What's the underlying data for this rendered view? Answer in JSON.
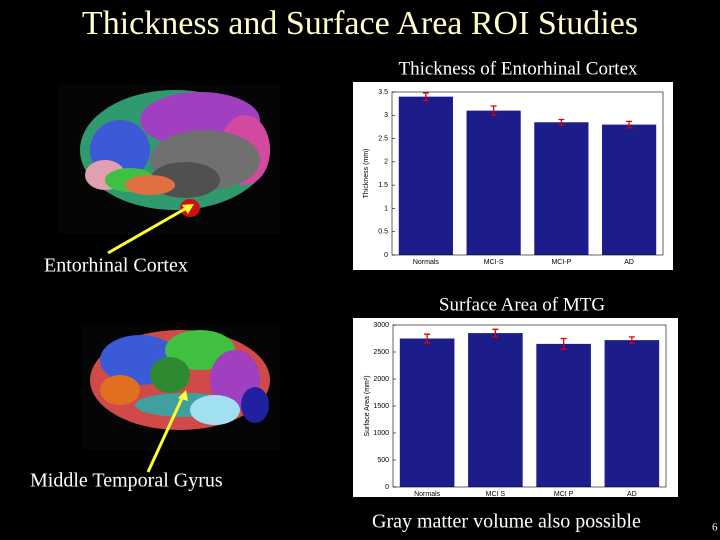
{
  "title": "Thickness and Surface Area ROI Studies",
  "labels": [
    "Entorhinal Cortex",
    "Middle Temporal Gyrus"
  ],
  "footnote": "Gray matter volume also possible",
  "page_number": "6",
  "chart_data": [
    {
      "type": "bar",
      "title": "Thickness of Entorhinal Cortex",
      "y_label": "Thickness (mm)",
      "categories": [
        "Normals",
        "MCI-S",
        "MCI-P",
        "AD"
      ],
      "values": [
        3.4,
        3.1,
        2.85,
        2.8
      ],
      "errors": [
        0.08,
        0.1,
        0.06,
        0.07
      ],
      "color": "#1c1c8a",
      "error_color": "#dd0000",
      "ylim": [
        0,
        3.5
      ],
      "yticks": [
        0,
        0.5,
        1,
        1.5,
        2,
        2.5,
        3,
        3.5
      ]
    },
    {
      "type": "bar",
      "title": "Surface Area of MTG",
      "y_label": "Surface Area (mm²)",
      "categories": [
        "Normals",
        "MCI S",
        "MCI P",
        "AD"
      ],
      "values": [
        2750,
        2850,
        2650,
        2720
      ],
      "errors": [
        80,
        70,
        100,
        60
      ],
      "color": "#1c1c8a",
      "error_color": "#dd0000",
      "ylim": [
        0,
        3000
      ],
      "yticks": [
        0,
        500,
        1000,
        1500,
        2000,
        2500,
        3000
      ]
    }
  ]
}
